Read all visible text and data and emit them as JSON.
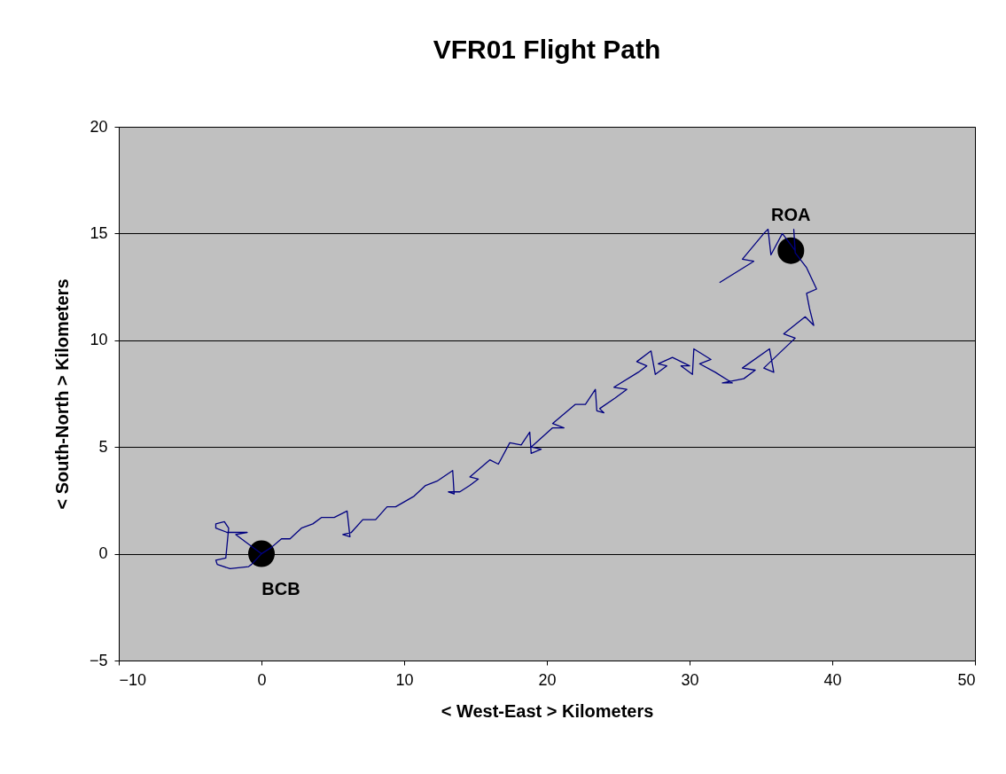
{
  "chart_data": {
    "type": "line",
    "title": "VFR01 Flight Path",
    "xlabel": "< West-East > Kilometers",
    "ylabel": "< South-North > Kilometers",
    "xlim": [
      -10,
      50
    ],
    "xticks": [
      -10,
      0,
      10,
      20,
      30,
      40,
      50
    ],
    "ylim": [
      -5,
      20
    ],
    "yticks": [
      -5,
      0,
      5,
      10,
      15,
      20
    ],
    "grid": "y",
    "series": [
      {
        "color": "#000080",
        "marker": "none",
        "line_style": "solid",
        "x": [
          0,
          -0.8,
          -1.8,
          -1.0,
          -2.4,
          -3.2,
          -3.2,
          -2.6,
          -2.3,
          -2.5,
          -3.2,
          -3.1,
          -2.2,
          -0.9,
          -0.7,
          0,
          0.7,
          1.4,
          2.0,
          2.8,
          3.6,
          4.2,
          5.1,
          6.0,
          6.2,
          5.7,
          6.3,
          7.1,
          8.0,
          8.8,
          9.4,
          10.7,
          11.5,
          12.3,
          13.4,
          13.5,
          13.1,
          13.9,
          14.6,
          15.2,
          14.6,
          16.0,
          16.6,
          17.4,
          18.2,
          18.8,
          18.9,
          19.6,
          18.9,
          20.4,
          21.2,
          20.4,
          22.0,
          22.7,
          23.4,
          23.5,
          24.0,
          23.7,
          24.8,
          25.6,
          24.7,
          26.4,
          27.0,
          26.3,
          27.3,
          27.6,
          28.4,
          27.8,
          28.8,
          30.0,
          29.4,
          30.2,
          30.3,
          31.5,
          30.7,
          31.8,
          33.0,
          32.3,
          33.8,
          34.6,
          33.7,
          35.6,
          35.9,
          35.2,
          37.4,
          36.6,
          38.1,
          38.7,
          38.4,
          38.2,
          38.9,
          38.2,
          37.4,
          37.3,
          37.4,
          36.5,
          35.7,
          35.5,
          35.2,
          33.7,
          34.5,
          32.1
        ],
        "values": [
          0,
          0.4,
          0.9,
          1.0,
          1.0,
          1.2,
          1.4,
          1.5,
          1.2,
          -0.2,
          -0.3,
          -0.5,
          -0.7,
          -0.6,
          -0.5,
          0,
          0.3,
          0.7,
          0.7,
          1.2,
          1.4,
          1.7,
          1.7,
          2.0,
          0.8,
          0.9,
          1.0,
          1.6,
          1.6,
          2.2,
          2.2,
          2.7,
          3.2,
          3.4,
          3.9,
          2.8,
          2.9,
          2.9,
          3.2,
          3.5,
          3.6,
          4.4,
          4.2,
          5.2,
          5.1,
          5.7,
          4.7,
          4.9,
          5.0,
          5.9,
          5.9,
          6.1,
          7.0,
          7.0,
          7.7,
          6.7,
          6.6,
          6.8,
          7.3,
          7.7,
          7.8,
          8.5,
          8.8,
          9.0,
          9.5,
          8.4,
          8.8,
          8.9,
          9.2,
          8.8,
          8.8,
          8.4,
          9.6,
          9.1,
          8.9,
          8.5,
          8.0,
          8.0,
          8.2,
          8.6,
          8.7,
          9.6,
          8.5,
          8.7,
          10.1,
          10.3,
          11.1,
          10.7,
          11.5,
          12.2,
          12.4,
          13.4,
          14.1,
          15.2,
          14.2,
          15.0,
          14.0,
          15.2,
          15.0,
          13.8,
          13.7,
          12.7
        ]
      },
      {
        "type": "scatter",
        "color": "#000000",
        "marker": "circle",
        "x": [
          0,
          37.1
        ],
        "values": [
          0,
          14.2
        ]
      }
    ],
    "annotations": [
      {
        "text": "BCB",
        "x": 0,
        "y": 0
      },
      {
        "text": "ROA",
        "x": 37.1,
        "y": 14.2
      }
    ]
  }
}
